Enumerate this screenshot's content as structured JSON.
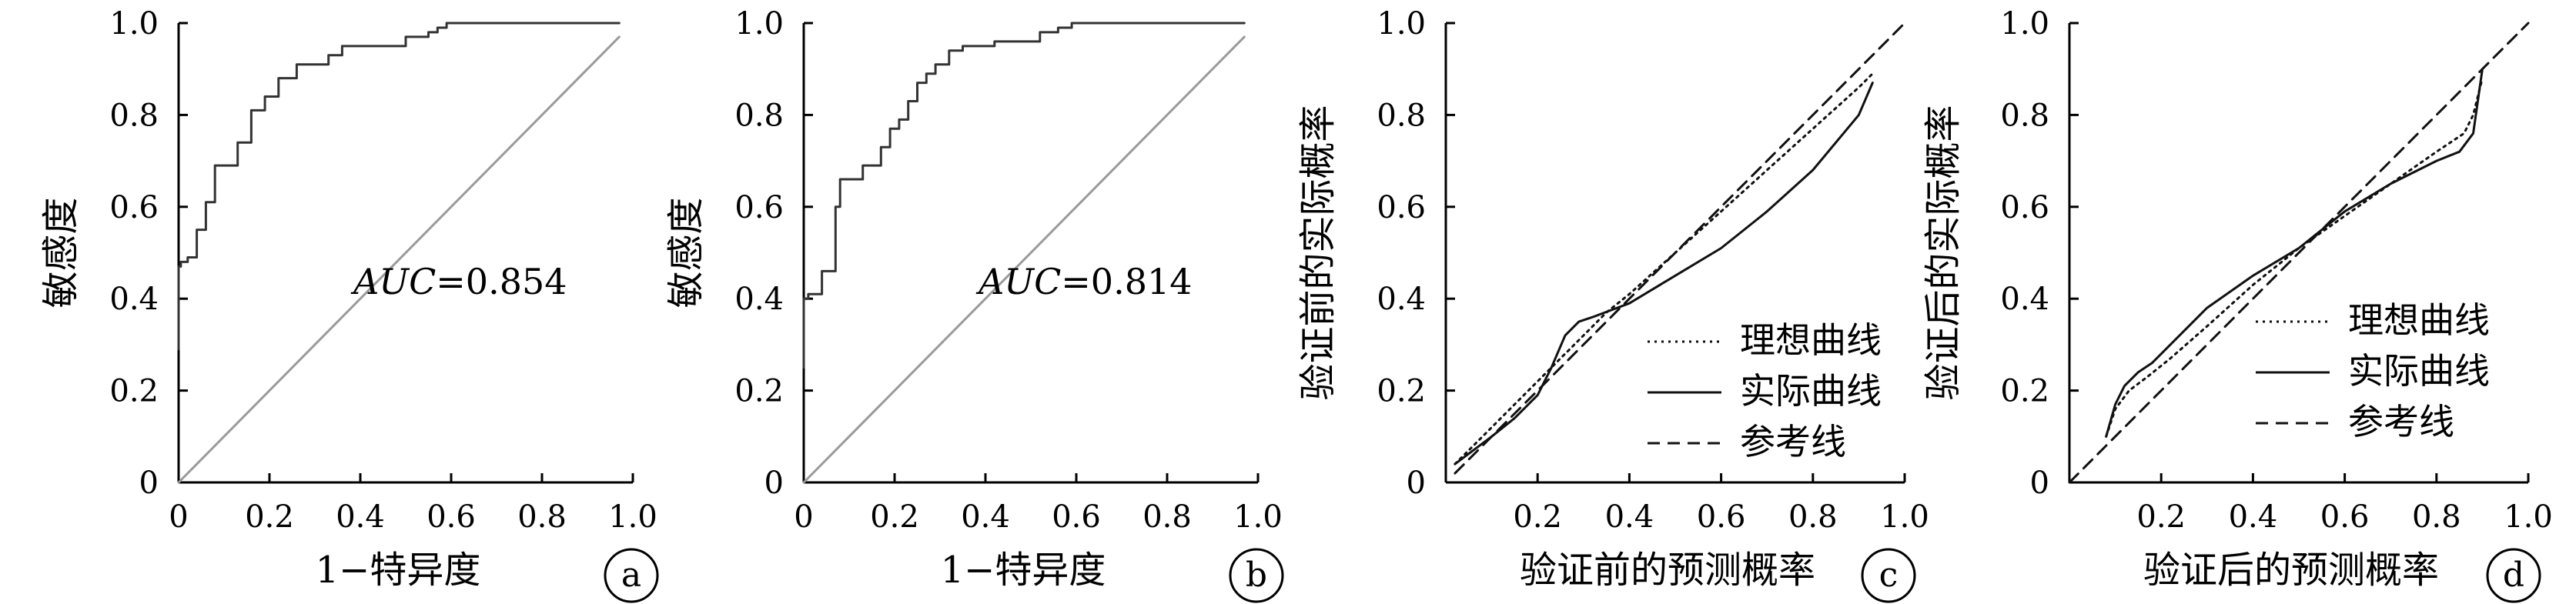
{
  "chart_data": [
    {
      "panel": "a",
      "type": "line",
      "xlabel": "1−特异度",
      "ylabel": "敏感度",
      "xlim": [
        0,
        1
      ],
      "ylim": [
        0,
        1
      ],
      "x_ticks": [
        "0",
        "0.2",
        "0.4",
        "0.6",
        "0.8",
        "1.0"
      ],
      "y_ticks": [
        "0",
        "0.2",
        "0.4",
        "0.6",
        "0.8",
        "1.0"
      ],
      "annotation_prefix": "AUC",
      "annotation_value": "=0.854",
      "badge": "a",
      "series": [
        {
          "style": "roc-step",
          "x": [
            0,
            0,
            0.005,
            0.005,
            0.02,
            0.02,
            0.04,
            0.04,
            0.06,
            0.06,
            0.08,
            0.08,
            0.13,
            0.13,
            0.16,
            0.16,
            0.19,
            0.19,
            0.22,
            0.22,
            0.26,
            0.26,
            0.33,
            0.33,
            0.36,
            0.36,
            0.5,
            0.5,
            0.55,
            0.55,
            0.57,
            0.57,
            0.59,
            0.59,
            0.97
          ],
          "y": [
            0.29,
            0.47,
            0.47,
            0.48,
            0.48,
            0.49,
            0.49,
            0.55,
            0.55,
            0.61,
            0.61,
            0.69,
            0.69,
            0.74,
            0.74,
            0.81,
            0.81,
            0.84,
            0.84,
            0.88,
            0.88,
            0.91,
            0.91,
            0.93,
            0.93,
            0.95,
            0.95,
            0.97,
            0.97,
            0.98,
            0.98,
            0.99,
            0.99,
            1.0,
            1.0
          ]
        },
        {
          "style": "diagonal",
          "x": [
            0,
            0.97
          ],
          "y": [
            0,
            0.97
          ]
        }
      ]
    },
    {
      "panel": "b",
      "type": "line",
      "xlabel": "1−特异度",
      "ylabel": "敏感度",
      "xlim": [
        0,
        1
      ],
      "ylim": [
        0,
        1
      ],
      "x_ticks": [
        "0",
        "0.2",
        "0.4",
        "0.6",
        "0.8",
        "1.0"
      ],
      "y_ticks": [
        "0",
        "0.2",
        "0.4",
        "0.6",
        "0.8",
        "1.0"
      ],
      "annotation_prefix": "AUC",
      "annotation_value": "=0.814",
      "badge": "b",
      "series": [
        {
          "style": "roc-step",
          "x": [
            0,
            0,
            0.01,
            0.01,
            0.04,
            0.04,
            0.07,
            0.07,
            0.08,
            0.08,
            0.13,
            0.13,
            0.17,
            0.17,
            0.19,
            0.19,
            0.21,
            0.21,
            0.23,
            0.23,
            0.25,
            0.25,
            0.27,
            0.27,
            0.29,
            0.29,
            0.32,
            0.32,
            0.35,
            0.35,
            0.42,
            0.42,
            0.52,
            0.52,
            0.56,
            0.56,
            0.59,
            0.59,
            0.97
          ],
          "y": [
            0.25,
            0.4,
            0.4,
            0.41,
            0.41,
            0.46,
            0.46,
            0.6,
            0.6,
            0.66,
            0.66,
            0.69,
            0.69,
            0.73,
            0.73,
            0.77,
            0.77,
            0.79,
            0.79,
            0.83,
            0.83,
            0.87,
            0.87,
            0.89,
            0.89,
            0.91,
            0.91,
            0.94,
            0.94,
            0.95,
            0.95,
            0.96,
            0.96,
            0.98,
            0.98,
            0.99,
            0.99,
            1.0,
            1.0
          ]
        },
        {
          "style": "diagonal",
          "x": [
            0,
            0.97
          ],
          "y": [
            0,
            0.97
          ]
        }
      ]
    },
    {
      "panel": "c",
      "type": "line",
      "xlabel": "验证前的预测概率",
      "ylabel": "验证前的实际概率",
      "xlim": [
        0,
        1
      ],
      "ylim": [
        0,
        1
      ],
      "x_ticks": [
        "0.2",
        "0.4",
        "0.6",
        "0.8",
        "1.0"
      ],
      "y_ticks": [
        "0",
        "0.2",
        "0.4",
        "0.6",
        "0.8",
        "1.0"
      ],
      "legend": [
        "理想曲线",
        "实际曲线",
        "参考线"
      ],
      "legend_position": "bottom-right",
      "badge": "c",
      "series": [
        {
          "name": "理想曲线",
          "style": "dotted",
          "x": [
            0.02,
            0.05,
            0.1,
            0.15,
            0.2,
            0.25,
            0.3,
            0.35,
            0.4,
            0.5,
            0.6,
            0.7,
            0.8,
            0.9,
            0.93
          ],
          "y": [
            0.04,
            0.07,
            0.12,
            0.17,
            0.22,
            0.27,
            0.32,
            0.37,
            0.41,
            0.5,
            0.59,
            0.68,
            0.77,
            0.86,
            0.89
          ]
        },
        {
          "name": "实际曲线",
          "style": "solid",
          "x": [
            0.02,
            0.06,
            0.1,
            0.15,
            0.2,
            0.23,
            0.26,
            0.29,
            0.32,
            0.36,
            0.4,
            0.5,
            0.6,
            0.7,
            0.8,
            0.9,
            0.93
          ],
          "y": [
            0.04,
            0.07,
            0.1,
            0.14,
            0.19,
            0.25,
            0.32,
            0.35,
            0.36,
            0.375,
            0.39,
            0.45,
            0.51,
            0.59,
            0.68,
            0.8,
            0.87
          ]
        },
        {
          "name": "参考线",
          "style": "dashed",
          "x": [
            0.02,
            1.0
          ],
          "y": [
            0.02,
            1.0
          ]
        }
      ]
    },
    {
      "panel": "d",
      "type": "line",
      "xlabel": "验证后的预测概率",
      "ylabel": "验证后的实际概率",
      "xlim": [
        0,
        1
      ],
      "ylim": [
        0,
        1
      ],
      "x_ticks": [
        "0.2",
        "0.4",
        "0.6",
        "0.8",
        "1.0"
      ],
      "y_ticks": [
        "0",
        "0.2",
        "0.4",
        "0.6",
        "0.8",
        "1.0"
      ],
      "legend": [
        "理想曲线",
        "实际曲线",
        "参考线"
      ],
      "legend_position": "middle-right",
      "badge": "d",
      "series": [
        {
          "name": "理想曲线",
          "style": "dotted",
          "x": [
            0.08,
            0.1,
            0.13,
            0.17,
            0.22,
            0.3,
            0.4,
            0.5,
            0.6,
            0.7,
            0.8,
            0.86,
            0.88,
            0.9
          ],
          "y": [
            0.1,
            0.16,
            0.2,
            0.23,
            0.27,
            0.34,
            0.43,
            0.51,
            0.58,
            0.65,
            0.72,
            0.76,
            0.8,
            0.88
          ]
        },
        {
          "name": "实际曲线",
          "style": "solid",
          "x": [
            0.08,
            0.1,
            0.12,
            0.15,
            0.18,
            0.22,
            0.3,
            0.4,
            0.5,
            0.6,
            0.7,
            0.8,
            0.85,
            0.88,
            0.9
          ],
          "y": [
            0.1,
            0.17,
            0.21,
            0.24,
            0.26,
            0.3,
            0.38,
            0.45,
            0.51,
            0.59,
            0.65,
            0.7,
            0.72,
            0.76,
            0.9
          ]
        },
        {
          "name": "参考线",
          "style": "dashed",
          "x": [
            0.0,
            1.0
          ],
          "y": [
            0.0,
            1.0
          ]
        }
      ]
    }
  ]
}
